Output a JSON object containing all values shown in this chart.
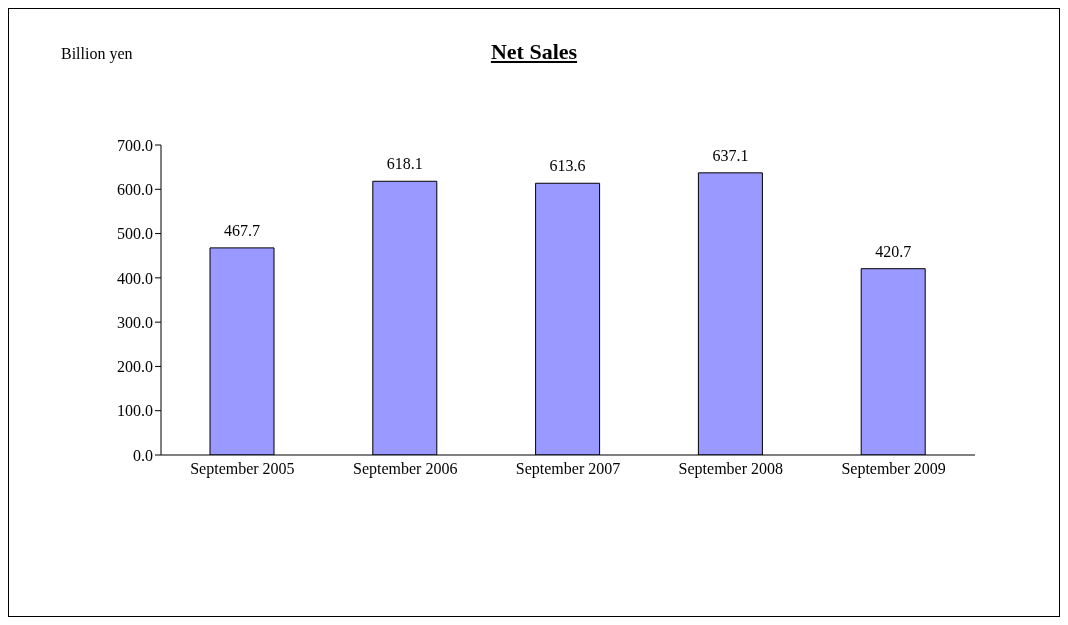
{
  "chart_data": {
    "type": "bar",
    "title": "Net Sales",
    "ylabel": "Billion yen",
    "categories": [
      "September 2005",
      "September 2006",
      "September 2007",
      "September 2008",
      "September 2009"
    ],
    "values": [
      467.7,
      618.1,
      613.6,
      637.1,
      420.7
    ],
    "color": "#9999ff",
    "ylim": [
      0,
      700
    ],
    "yticks": [
      {
        "value": 0,
        "label": "0.0"
      },
      {
        "value": 100,
        "label": "100.0"
      },
      {
        "value": 200,
        "label": "200.0"
      },
      {
        "value": 300,
        "label": "300.0"
      },
      {
        "value": 400,
        "label": "400.0"
      },
      {
        "value": 500,
        "label": "500.0"
      },
      {
        "value": 600,
        "label": "600.0"
      },
      {
        "value": 700,
        "label": "700.0"
      }
    ],
    "data_labels": true,
    "grid": false,
    "legend": false
  }
}
